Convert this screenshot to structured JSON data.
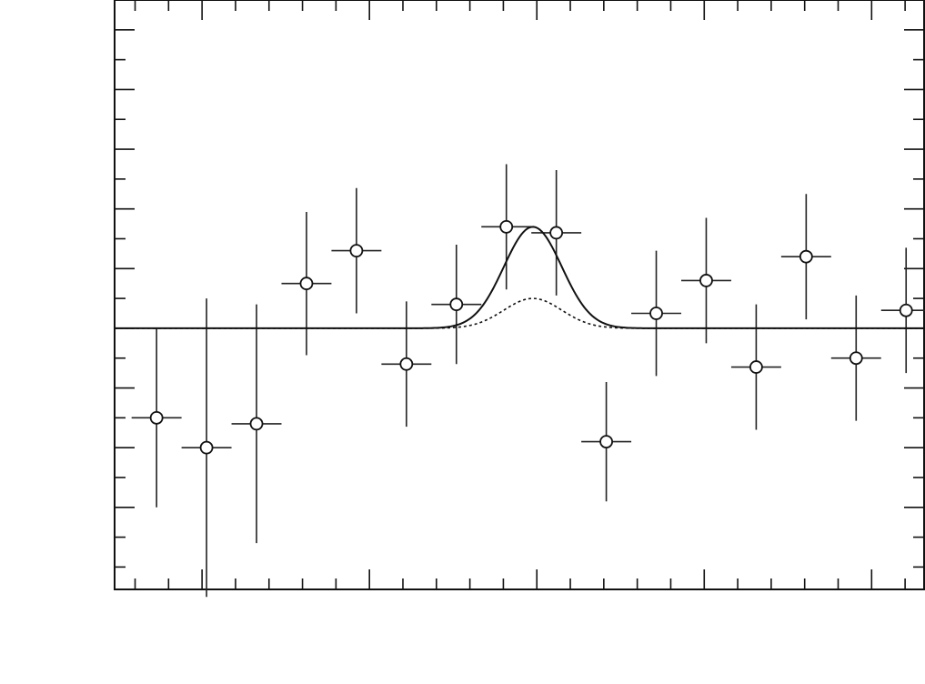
{
  "chart_data": {
    "type": "scatter",
    "title": "",
    "xlabel": "",
    "ylabel": "",
    "xlim": [
      0,
      16.2
    ],
    "ylim": [
      -8.75,
      11
    ],
    "x_ticks": [
      1.75,
      5.1,
      8.45,
      11.8,
      15.15
    ],
    "x_tick_labels": [
      "",
      "",
      "",
      "",
      ""
    ],
    "y_ticks": [
      -6,
      -4,
      -2,
      0,
      2,
      4,
      6,
      8,
      10
    ],
    "y_tick_labels": [
      "",
      "",
      "",
      "",
      "",
      "",
      "",
      "",
      ""
    ],
    "grid": false,
    "legend": "none",
    "series": [
      {
        "type": "errorbar",
        "x": [
          0.84,
          1.84,
          2.84,
          3.84,
          4.84,
          5.84,
          6.84,
          7.84,
          8.84,
          9.84,
          10.84,
          11.84,
          12.84,
          13.84,
          14.84,
          15.84
        ],
        "y": [
          -3.0,
          -4.0,
          -3.2,
          1.5,
          2.6,
          -1.2,
          0.8,
          3.4,
          3.2,
          -3.8,
          0.5,
          1.6,
          -1.3,
          2.4,
          -1.0,
          0.6
        ],
        "xerr": [
          0.5,
          0.5,
          0.5,
          0.5,
          0.5,
          0.5,
          0.5,
          0.5,
          0.5,
          0.5,
          0.5,
          0.5,
          0.5,
          0.5,
          0.5,
          0.5
        ],
        "yerr_low": [
          3.0,
          5.0,
          4.0,
          2.4,
          2.1,
          2.1,
          2.0,
          2.1,
          2.1,
          2.0,
          2.1,
          2.1,
          2.1,
          2.1,
          2.1,
          2.1
        ],
        "yerr_high": [
          3.0,
          5.0,
          4.0,
          2.4,
          2.1,
          2.1,
          2.0,
          2.1,
          2.1,
          2.0,
          2.1,
          2.1,
          2.1,
          2.1,
          2.1,
          2.1
        ]
      },
      {
        "type": "line",
        "style": "solid",
        "baseline": 0,
        "gaussian": {
          "center": 8.37,
          "sigma": 0.58,
          "amplitude": 3.4
        }
      },
      {
        "type": "line",
        "style": "dotted",
        "baseline": 0,
        "gaussian": {
          "center": 8.37,
          "sigma": 0.58,
          "amplitude": 1.0
        }
      }
    ]
  }
}
